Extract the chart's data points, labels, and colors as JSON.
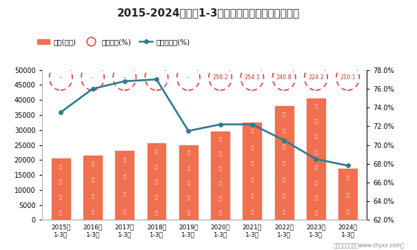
{
  "title": "2015-2024年各年1-3月山西省工业企业负债统计图",
  "categories": [
    "2015年\n1-3月",
    "2016年\n1-3月",
    "2017年\n1-3月",
    "2018年\n1-3月",
    "2019年\n1-3月",
    "2020年\n1-3月",
    "2021年\n1-3月",
    "2022年\n1-3月",
    "2023年\n1-3月",
    "2024年\n1-3月"
  ],
  "liabilities": [
    20500,
    21500,
    23000,
    25500,
    25000,
    29500,
    32500,
    38000,
    40500,
    17000
  ],
  "debt_ratio": [
    73.5,
    76.0,
    76.8,
    77.0,
    71.5,
    72.2,
    72.2,
    70.5,
    68.5,
    67.8
  ],
  "equity_ratio_vals": [
    "-",
    "-",
    "-",
    "-",
    "-",
    "258.2",
    "254.1",
    "240.8",
    "224.2",
    "210.1"
  ],
  "bar_color": "#F07050",
  "line_color": "#2E7D8E",
  "ellipse_edge_color": "#E84444",
  "ellipse_text_color": "#CC3333",
  "ylim_left": [
    0,
    50000
  ],
  "ylim_right": [
    62.0,
    78.0
  ],
  "yticks_left": [
    0,
    5000,
    10000,
    15000,
    20000,
    25000,
    30000,
    35000,
    40000,
    45000,
    50000
  ],
  "yticks_right": [
    62.0,
    64.0,
    66.0,
    68.0,
    70.0,
    72.0,
    74.0,
    76.0,
    78.0
  ],
  "background_color": "#FFFFFF",
  "watermark": "制图：智研咨询（www.chyxx.com）",
  "legend_items": [
    "负债(亿元)",
    "产权比率(%)",
    "资产负债率(%)"
  ],
  "debt_char": "债",
  "chars_per_bar": [
    4,
    4,
    4,
    5,
    5,
    6,
    6,
    7,
    8,
    3
  ]
}
